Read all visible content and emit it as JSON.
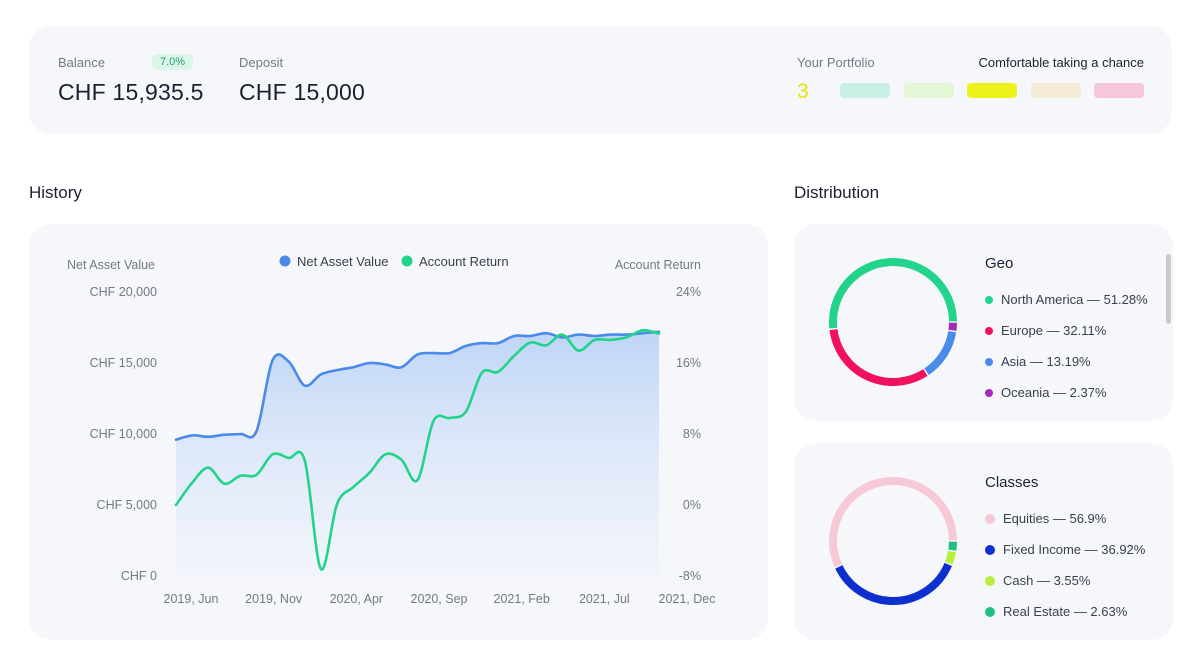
{
  "summary": {
    "balance_label": "Balance",
    "balance_badge": "7.0%",
    "balance_value": "CHF 15,935.5",
    "deposit_label": "Deposit",
    "deposit_value": "CHF 15,000",
    "portfolio_label": "Your Portfolio",
    "portfolio_level": "3",
    "risk_caption": "Comfortable taking a chance",
    "risk_levels": [
      {
        "level": 1,
        "color": "#c8f0e4"
      },
      {
        "level": 2,
        "color": "#e4f6d6"
      },
      {
        "level": 3,
        "color": "#eef21c"
      },
      {
        "level": 4,
        "color": "#f5ead6"
      },
      {
        "level": 5,
        "color": "#f6c6dc"
      }
    ]
  },
  "history": {
    "title": "History",
    "chart_data": {
      "type": "line",
      "left_axis_title": "Net Asset Value",
      "right_axis_title": "Account Return",
      "legend": [
        {
          "name": "Net Asset Value",
          "color": "#4a8ae8"
        },
        {
          "name": "Account Return",
          "color": "#22d38a"
        }
      ],
      "left_ticks": [
        "CHF 20,000",
        "CHF 15,000",
        "CHF 10,000",
        "CHF 5,000",
        "CHF 0"
      ],
      "right_ticks": [
        "24%",
        "16%",
        "8%",
        "0%",
        "-8%"
      ],
      "x_ticks": [
        "2019, Jun",
        "2019, Nov",
        "2020, Apr",
        "2020, Sep",
        "2021, Feb",
        "2021, Jul",
        "2021, Dec"
      ],
      "ylim_left": [
        0,
        20000
      ],
      "ylim_right": [
        -8,
        24
      ],
      "x": [
        0,
        1,
        2,
        3,
        4,
        5,
        6,
        7,
        8,
        9,
        10,
        11,
        12,
        13,
        14,
        15,
        16,
        17,
        18,
        19,
        20,
        21,
        22,
        23,
        24,
        25,
        26,
        27,
        28,
        29,
        30
      ],
      "series": [
        {
          "name": "Net Asset Value",
          "axis": "left",
          "color": "#4a8ae8",
          "values": [
            9600,
            9900,
            9800,
            9950,
            10000,
            10200,
            15200,
            15100,
            13400,
            14200,
            14500,
            14700,
            15000,
            14900,
            14700,
            15600,
            15700,
            15700,
            16200,
            16400,
            16400,
            16900,
            16900,
            17100,
            16800,
            17000,
            16900,
            17000,
            17000,
            17100,
            17200
          ]
        },
        {
          "name": "Account Return",
          "axis": "right",
          "color": "#22d38a",
          "values": [
            0.0,
            2.5,
            4.2,
            2.4,
            3.3,
            3.4,
            5.7,
            5.3,
            5.0,
            -7.2,
            0.1,
            2.0,
            3.6,
            5.7,
            5.1,
            2.8,
            9.5,
            9.8,
            10.5,
            14.9,
            15.0,
            16.8,
            18.3,
            18.0,
            19.2,
            17.4,
            18.6,
            18.6,
            18.9,
            19.7,
            19.3
          ]
        }
      ]
    }
  },
  "distribution": {
    "title": "Distribution",
    "geo": {
      "title": "Geo",
      "items": [
        {
          "label": "North America — 51.28%",
          "value": 51.28,
          "color": "#22d38a"
        },
        {
          "label": "Europe — 32.11%",
          "value": 32.11,
          "color": "#f0125f"
        },
        {
          "label": "Asia — 13.19%",
          "value": 13.19,
          "color": "#4a8ae8"
        },
        {
          "label": "Oceania — 2.37%",
          "value": 2.37,
          "color": "#a52ab8"
        }
      ]
    },
    "classes": {
      "title": "Classes",
      "items": [
        {
          "label": "Equities — 56.9%",
          "value": 56.9,
          "color": "#f7c8d6"
        },
        {
          "label": "Fixed Income — 36.92%",
          "value": 36.92,
          "color": "#0e2fcf"
        },
        {
          "label": "Cash — 3.55%",
          "value": 3.55,
          "color": "#b9ef3a"
        },
        {
          "label": "Real Estate — 2.63%",
          "value": 2.63,
          "color": "#1fbf7e"
        }
      ]
    }
  }
}
